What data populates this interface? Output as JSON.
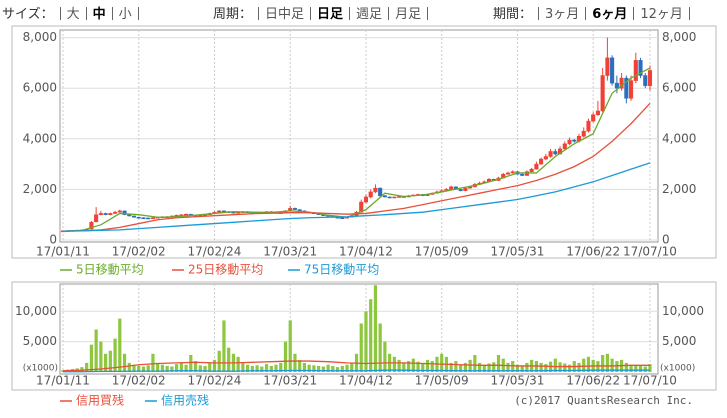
{
  "toolbar": [
    {
      "label": "サイズ：",
      "options": [
        "大",
        "中",
        "小"
      ],
      "selected": 1
    },
    {
      "label": "周期：",
      "options": [
        "日中足",
        "日足",
        "週足",
        "月足"
      ],
      "selected": 1
    },
    {
      "label": "期間：",
      "options": [
        "3ヶ月",
        "6ヶ月",
        "12ヶ月"
      ],
      "selected": 1
    }
  ],
  "copyright": "(c)2017 QuantsResearch Inc.",
  "chart_data": [
    {
      "type": "candlestick",
      "categories": [
        "17/01/11",
        null,
        null,
        null,
        null,
        null,
        null,
        null,
        null,
        null,
        null,
        null,
        null,
        null,
        null,
        null,
        "17/02/02",
        null,
        null,
        null,
        null,
        null,
        null,
        null,
        null,
        null,
        null,
        null,
        null,
        null,
        null,
        null,
        "17/02/24",
        null,
        null,
        null,
        null,
        null,
        null,
        null,
        null,
        null,
        null,
        null,
        null,
        null,
        null,
        null,
        "17/03/21",
        null,
        null,
        null,
        null,
        null,
        null,
        null,
        null,
        null,
        null,
        null,
        null,
        null,
        null,
        null,
        "17/04/12",
        null,
        null,
        null,
        null,
        null,
        null,
        null,
        null,
        null,
        null,
        null,
        null,
        null,
        null,
        null,
        "17/05/09",
        null,
        null,
        null,
        null,
        null,
        null,
        null,
        null,
        null,
        null,
        null,
        null,
        null,
        null,
        null,
        "17/05/31",
        null,
        null,
        null,
        null,
        null,
        null,
        null,
        null,
        null,
        null,
        null,
        null,
        null,
        null,
        null,
        "17/06/22",
        null,
        null,
        null,
        null,
        null,
        null,
        null,
        null,
        null,
        null,
        null,
        "17/07/10"
      ],
      "open": [
        350,
        360,
        370,
        380,
        390,
        400,
        430,
        720,
        1000,
        1050,
        1000,
        1050,
        1100,
        1150,
        1000,
        950,
        900,
        880,
        870,
        860,
        880,
        900,
        920,
        900,
        950,
        980,
        1000,
        1020,
        980,
        960,
        980,
        1000,
        1050,
        1100,
        1150,
        1120,
        1100,
        1080,
        1100,
        1120,
        1100,
        1080,
        1070,
        1100,
        1120,
        1090,
        1060,
        1080,
        1150,
        1250,
        1200,
        1150,
        1100,
        1080,
        1050,
        1000,
        980,
        950,
        900,
        880,
        870,
        900,
        950,
        1100,
        1500,
        1700,
        1900,
        2050,
        1750,
        1700,
        1680,
        1700,
        1720,
        1700,
        1750,
        1780,
        1800,
        1750,
        1800,
        1850,
        1900,
        1950,
        2000,
        2100,
        2000,
        1950,
        2050,
        2100,
        2200,
        2250,
        2300,
        2400,
        2350,
        2450,
        2600,
        2650,
        2700,
        2600,
        2550,
        2700,
        2800,
        3000,
        3200,
        3300,
        3500,
        3400,
        3600,
        3800,
        3950,
        3900,
        4100,
        4300,
        4700,
        4950,
        5100,
        6500,
        7200,
        6200,
        6000,
        6400,
        5600,
        6300,
        7100,
        6500,
        6100
      ],
      "high": [
        380,
        380,
        390,
        400,
        410,
        440,
        750,
        1300,
        1150,
        1080,
        1080,
        1150,
        1200,
        1160,
        1020,
        960,
        920,
        900,
        890,
        900,
        920,
        940,
        940,
        970,
        1000,
        1020,
        1050,
        1030,
        1000,
        1000,
        1020,
        1080,
        1130,
        1180,
        1170,
        1140,
        1120,
        1120,
        1140,
        1140,
        1120,
        1100,
        1120,
        1140,
        1140,
        1110,
        1100,
        1180,
        1350,
        1280,
        1220,
        1170,
        1120,
        1100,
        1070,
        1020,
        1000,
        960,
        920,
        900,
        920,
        980,
        1150,
        1600,
        1800,
        2000,
        2200,
        2080,
        1780,
        1720,
        1720,
        1750,
        1750,
        1780,
        1800,
        1830,
        1820,
        1830,
        1880,
        1950,
        2000,
        2050,
        2150,
        2120,
        2020,
        2080,
        2150,
        2250,
        2300,
        2350,
        2450,
        2420,
        2500,
        2650,
        2700,
        2750,
        2720,
        2650,
        2750,
        2850,
        3100,
        3250,
        3400,
        3600,
        3600,
        3700,
        3900,
        4050,
        4000,
        4200,
        4450,
        4800,
        5050,
        5500,
        6800,
        8000,
        7300,
        6500,
        6600,
        6500,
        6500,
        7400,
        7200,
        6600,
        6900
      ],
      "low": [
        340,
        350,
        360,
        370,
        380,
        390,
        420,
        700,
        980,
        980,
        980,
        1030,
        1080,
        980,
        930,
        880,
        860,
        850,
        840,
        850,
        870,
        890,
        890,
        890,
        940,
        970,
        990,
        970,
        950,
        940,
        960,
        990,
        1040,
        1080,
        1100,
        1090,
        1070,
        1060,
        1080,
        1090,
        1070,
        1050,
        1060,
        1080,
        1080,
        1050,
        1040,
        1060,
        1130,
        1180,
        1140,
        1090,
        1070,
        1030,
        990,
        970,
        930,
        880,
        860,
        850,
        860,
        890,
        940,
        1080,
        1450,
        1650,
        1850,
        1700,
        1680,
        1650,
        1660,
        1680,
        1680,
        1690,
        1730,
        1760,
        1730,
        1740,
        1790,
        1830,
        1880,
        1930,
        1980,
        1980,
        1920,
        1930,
        2030,
        2080,
        2180,
        2230,
        2280,
        2330,
        2330,
        2430,
        2580,
        2630,
        2580,
        2530,
        2530,
        2680,
        2780,
        2980,
        3150,
        3250,
        3350,
        3380,
        3550,
        3750,
        3850,
        3850,
        4050,
        4250,
        4650,
        4900,
        5050,
        6300,
        6100,
        5800,
        5900,
        5400,
        5500,
        6200,
        6400,
        6000,
        5900
      ],
      "close": [
        360,
        370,
        380,
        390,
        400,
        420,
        700,
        1000,
        1050,
        1000,
        1050,
        1100,
        1150,
        1000,
        950,
        900,
        880,
        870,
        860,
        880,
        900,
        920,
        900,
        950,
        980,
        1000,
        1020,
        980,
        960,
        980,
        1000,
        1050,
        1100,
        1150,
        1120,
        1100,
        1080,
        1100,
        1120,
        1100,
        1080,
        1070,
        1100,
        1120,
        1090,
        1060,
        1080,
        1150,
        1250,
        1200,
        1150,
        1100,
        1080,
        1050,
        1000,
        980,
        950,
        900,
        880,
        870,
        900,
        950,
        1100,
        1500,
        1700,
        1900,
        2050,
        1750,
        1700,
        1680,
        1700,
        1720,
        1700,
        1750,
        1780,
        1800,
        1750,
        1800,
        1850,
        1900,
        1950,
        2000,
        2100,
        2000,
        1950,
        2050,
        2100,
        2200,
        2250,
        2300,
        2400,
        2350,
        2450,
        2600,
        2650,
        2700,
        2600,
        2550,
        2700,
        2800,
        3000,
        3200,
        3300,
        3500,
        3400,
        3600,
        3800,
        3950,
        3900,
        4100,
        4300,
        4700,
        4950,
        5100,
        6500,
        7200,
        6200,
        6000,
        6400,
        5600,
        6300,
        7100,
        6500,
        6100,
        6700
      ],
      "up_color": "#ef4136",
      "down_color": "#2c6ebd",
      "ylim": [
        0,
        8300
      ],
      "yticks": [
        0,
        {
          "value": 2000,
          "label": "2,000"
        },
        {
          "value": 4000,
          "label": "4,000"
        },
        {
          "value": 6000,
          "label": "6,000"
        },
        {
          "value": 8000,
          "label": "8,000"
        }
      ],
      "grid": true,
      "series": [
        {
          "name": "5日移動平均",
          "color": "#6aaa2a",
          "x": [
            0,
            4,
            8,
            12,
            16,
            20,
            24,
            28,
            32,
            36,
            40,
            44,
            48,
            52,
            56,
            60,
            64,
            68,
            72,
            76,
            80,
            84,
            88,
            92,
            96,
            100,
            104,
            108,
            112,
            116,
            120,
            124
          ],
          "values": [
            350,
            380,
            600,
            1050,
            1000,
            900,
            920,
            980,
            1050,
            1120,
            1100,
            1090,
            1150,
            1100,
            980,
            900,
            1200,
            1850,
            1720,
            1780,
            1900,
            2050,
            2200,
            2400,
            2650,
            2650,
            3300,
            3800,
            4200,
            5800,
            6400,
            6800
          ]
        },
        {
          "name": "25日移動平均",
          "color": "#e8503a",
          "x": [
            0,
            4,
            8,
            12,
            16,
            20,
            24,
            28,
            32,
            36,
            40,
            44,
            48,
            52,
            56,
            60,
            64,
            68,
            72,
            76,
            80,
            84,
            88,
            92,
            96,
            100,
            104,
            108,
            112,
            116,
            120,
            124
          ],
          "values": [
            350,
            360,
            400,
            500,
            650,
            800,
            880,
            920,
            960,
            1000,
            1040,
            1060,
            1080,
            1080,
            1050,
            1020,
            1050,
            1150,
            1250,
            1400,
            1550,
            1700,
            1850,
            2000,
            2150,
            2350,
            2600,
            2900,
            3300,
            3900,
            4600,
            5400
          ]
        },
        {
          "name": "75日移動平均",
          "color": "#1a9ad6",
          "x": [
            0,
            4,
            8,
            12,
            16,
            20,
            24,
            28,
            32,
            36,
            40,
            44,
            48,
            52,
            56,
            60,
            64,
            68,
            72,
            76,
            80,
            84,
            88,
            92,
            96,
            100,
            104,
            108,
            112,
            116,
            120,
            124
          ],
          "values": [
            350,
            360,
            380,
            400,
            450,
            500,
            550,
            600,
            650,
            700,
            750,
            800,
            850,
            880,
            900,
            920,
            960,
            1000,
            1050,
            1100,
            1200,
            1300,
            1400,
            1500,
            1600,
            1750,
            1900,
            2100,
            2300,
            2550,
            2800,
            3050
          ]
        }
      ]
    },
    {
      "type": "bar",
      "values": [
        300,
        400,
        500,
        600,
        800,
        1500,
        4500,
        7000,
        5000,
        3000,
        3500,
        5500,
        8800,
        3000,
        1500,
        1200,
        1000,
        900,
        1100,
        3000,
        1500,
        1200,
        1000,
        900,
        1300,
        1500,
        1200,
        2800,
        1800,
        1100,
        1000,
        1500,
        2000,
        3500,
        8500,
        4000,
        3000,
        2500,
        1500,
        1200,
        1000,
        1100,
        900,
        1300,
        1000,
        1200,
        1500,
        5000,
        8500,
        3000,
        2000,
        1500,
        1200,
        1100,
        1000,
        900,
        1200,
        1000,
        800,
        1000,
        1200,
        1500,
        3000,
        8000,
        10000,
        12000,
        14300,
        8000,
        5000,
        3000,
        2500,
        2000,
        1500,
        1800,
        2200,
        1700,
        1500,
        2000,
        1800,
        2500,
        3000,
        2500,
        1500,
        1800,
        1200,
        1500,
        2000,
        2800,
        1500,
        1200,
        1400,
        1600,
        2800,
        2200,
        1500,
        1800,
        1200,
        1000,
        1500,
        2000,
        1800,
        1500,
        1300,
        1700,
        2200,
        1600,
        1400,
        1200,
        1800,
        1500,
        2200,
        2500,
        2000,
        1800,
        2800,
        3000,
        2200,
        1800,
        2000,
        1500,
        1200,
        1000,
        1100,
        900,
        1300
      ],
      "color": "#8dc63f",
      "ylim": [
        0,
        14500
      ],
      "yticks": [
        {
          "value": 5000,
          "label": "5,000"
        },
        {
          "value": 10000,
          "label": "10,000"
        }
      ],
      "unit_label": "(x1000)",
      "grid": true,
      "series": [
        {
          "name": "信用買残",
          "color": "#e8503a",
          "x": [
            0,
            4,
            8,
            12,
            16,
            20,
            24,
            28,
            32,
            36,
            40,
            44,
            48,
            52,
            56,
            60,
            64,
            68,
            72,
            76,
            80,
            84,
            88,
            92,
            96,
            100,
            104,
            108,
            112,
            116,
            120,
            124
          ],
          "values": [
            200,
            300,
            500,
            800,
            1200,
            1400,
            1500,
            1600,
            1500,
            1500,
            1600,
            1700,
            1800,
            1800,
            1700,
            1500,
            1400,
            1500,
            1500,
            1400,
            1300,
            1200,
            1100,
            1100,
            1000,
            1000,
            900,
            900,
            1000,
            1000,
            1100,
            1100
          ]
        },
        {
          "name": "信用売残",
          "color": "#1a9ad6",
          "x": [
            0,
            4,
            8,
            12,
            16,
            20,
            24,
            28,
            32,
            36,
            40,
            44,
            48,
            52,
            56,
            60,
            64,
            68,
            72,
            76,
            80,
            84,
            88,
            92,
            96,
            100,
            104,
            108,
            112,
            116,
            120,
            124
          ],
          "values": [
            50,
            50,
            100,
            100,
            150,
            150,
            200,
            200,
            150,
            150,
            200,
            200,
            250,
            250,
            200,
            200,
            200,
            300,
            300,
            250,
            250,
            200,
            200,
            200,
            200,
            200,
            250,
            250,
            300,
            300,
            300,
            300
          ]
        }
      ]
    }
  ]
}
